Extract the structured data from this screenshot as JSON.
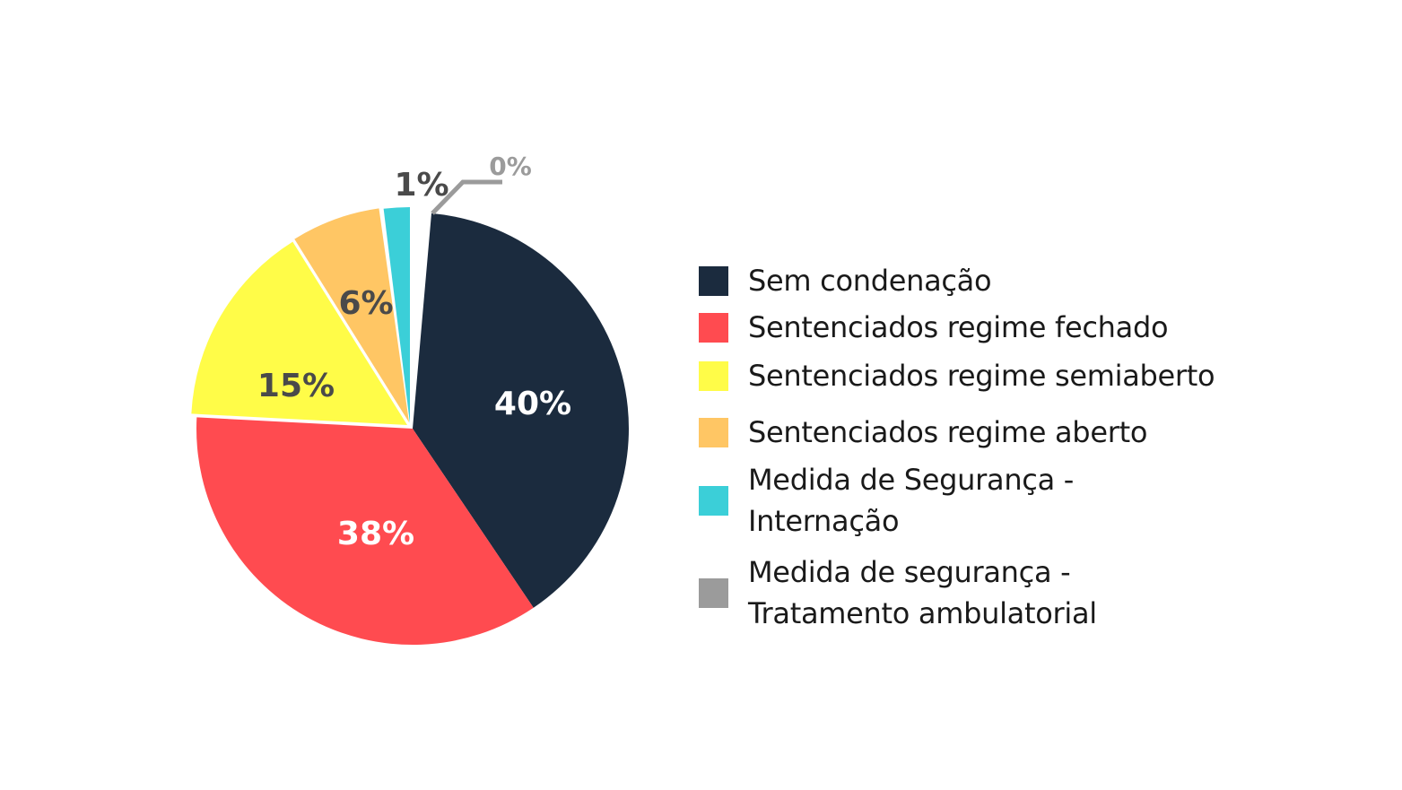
{
  "chart_data": {
    "type": "pie",
    "title": "",
    "categories": [
      "Sem condenação",
      "Sentenciados regime fechado",
      "Sentenciados regime semiaberto",
      "Sentenciados regime aberto",
      "Medida de Segurança - Internação",
      "Medida de segurança - Tratamento ambulatorial"
    ],
    "values": [
      40,
      38,
      15,
      6,
      1,
      0
    ],
    "labels": [
      "40%",
      "38%",
      "15%",
      "6%",
      "1%",
      "0%"
    ],
    "colors": [
      "#1b2b3e",
      "#ff4b50",
      "#fffc48",
      "#ffc664",
      "#3bcfd8",
      "#9b9b9b"
    ],
    "label_colors": [
      "#ffffff",
      "#ffffff",
      "#4a4a4a",
      "#4a4a4a",
      "#4a4a4a",
      "#9b9b9b"
    ],
    "legend_position": "right",
    "start_angle_deg": 5
  },
  "legend": {
    "items": [
      {
        "line1": "Sem condenação",
        "line2": ""
      },
      {
        "line1": "Sentenciados regime fechado",
        "line2": ""
      },
      {
        "line1": "Sentenciados regime semiaberto",
        "line2": ""
      },
      {
        "line1": "Sentenciados regime aberto",
        "line2": ""
      },
      {
        "line1": "Medida de Segurança -",
        "line2": "Internação"
      },
      {
        "line1": "Medida de segurança -",
        "line2": "Tratamento ambulatorial"
      }
    ]
  }
}
